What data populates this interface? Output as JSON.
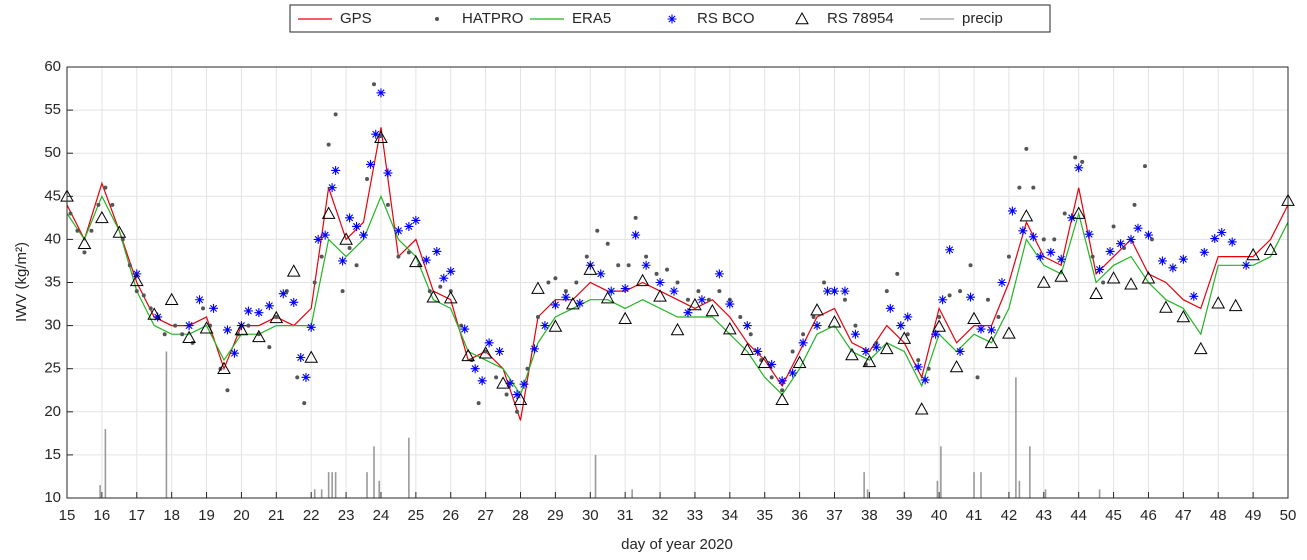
{
  "chart_data": {
    "type": "line",
    "xlabel": "day of year 2020",
    "ylabel": "IWV (kg/m²)",
    "xlim": [
      15,
      50
    ],
    "xticks": [
      15,
      16,
      17,
      18,
      19,
      20,
      21,
      22,
      23,
      24,
      25,
      26,
      27,
      28,
      29,
      30,
      31,
      32,
      33,
      34,
      35,
      36,
      37,
      38,
      39,
      40,
      41,
      42,
      43,
      44,
      45,
      46,
      47,
      48,
      49,
      50
    ],
    "ylim": [
      10,
      60
    ],
    "yticks": [
      10,
      15,
      20,
      25,
      30,
      35,
      40,
      45,
      50,
      55,
      60
    ],
    "grid": true,
    "legend": "top",
    "series": [
      {
        "name": "GPS",
        "style": "line",
        "color": "#e8000b",
        "x": [
          15,
          15.5,
          16,
          16.5,
          17,
          17.5,
          18,
          18.5,
          19,
          19.5,
          20,
          20.5,
          21,
          21.5,
          22,
          22.5,
          23,
          23.5,
          24,
          24.5,
          25,
          25.5,
          26,
          26.5,
          27,
          27.5,
          28,
          28.5,
          29,
          29.5,
          30,
          30.5,
          31,
          31.5,
          32,
          32.5,
          33,
          33.5,
          34,
          34.5,
          35,
          35.5,
          36,
          36.5,
          37,
          37.5,
          38,
          38.5,
          39,
          39.5,
          40,
          40.5,
          41,
          41.5,
          42,
          42.5,
          43,
          43.5,
          44,
          44.5,
          45,
          45.5,
          46,
          46.5,
          47,
          47.5,
          48,
          48.5,
          49,
          49.5,
          50
        ],
        "values": [
          44,
          40,
          46.5,
          41,
          35,
          31,
          30,
          30,
          31,
          25,
          30,
          30,
          31,
          30,
          32,
          46,
          40,
          42,
          53,
          38,
          40,
          34,
          33,
          26,
          27,
          25,
          19,
          31,
          33,
          33,
          35,
          34,
          34,
          35,
          34,
          33,
          32,
          33,
          31,
          28,
          26,
          23,
          27,
          31,
          32,
          28,
          27,
          30,
          28,
          24,
          32,
          28,
          30,
          30,
          35,
          42,
          38,
          37,
          46,
          36,
          38,
          40,
          36,
          35,
          33,
          32,
          38,
          38,
          38,
          40,
          44
        ]
      },
      {
        "name": "HATPRO",
        "style": "dot",
        "color": "#555555",
        "x": [
          15.1,
          15.3,
          15.5,
          15.7,
          15.9,
          16.1,
          16.3,
          16.6,
          16.8,
          17,
          17.2,
          17.4,
          17.6,
          17.8,
          18.1,
          18.3,
          18.6,
          18.9,
          19.1,
          19.4,
          19.6,
          19.9,
          20.2,
          20.5,
          20.8,
          21,
          21.3,
          21.6,
          21.8,
          22.1,
          22.3,
          22.5,
          22.7,
          22.9,
          23.1,
          23.3,
          23.6,
          23.8,
          24,
          24.2,
          24.5,
          24.8,
          25.1,
          25.4,
          25.7,
          26,
          26.3,
          26.6,
          26.8,
          27,
          27.3,
          27.6,
          27.9,
          28.2,
          28.5,
          28.8,
          29,
          29.3,
          29.6,
          29.9,
          30.2,
          30.5,
          30.8,
          31.1,
          31.3,
          31.6,
          31.9,
          32.2,
          32.5,
          32.8,
          33.1,
          33.4,
          33.7,
          34,
          34.3,
          34.6,
          34.9,
          35.2,
          35.5,
          35.8,
          36.1,
          36.4,
          36.7,
          37,
          37.3,
          37.6,
          37.9,
          38.2,
          38.5,
          38.8,
          39.1,
          39.4,
          39.7,
          40,
          40.3,
          40.6,
          40.9,
          41.1,
          41.4,
          41.7,
          42,
          42.3,
          42.5,
          42.7,
          43,
          43.3,
          43.6,
          43.9,
          44.1,
          44.4,
          44.7,
          45,
          45.3,
          45.6,
          45.9,
          46.1
        ],
        "values": [
          43,
          41,
          38.5,
          41,
          44,
          46,
          44,
          40,
          37,
          34,
          33.5,
          32,
          31,
          29,
          30,
          29,
          28,
          32,
          30,
          25,
          22.5,
          29,
          30,
          29,
          27.5,
          31,
          34,
          24,
          21,
          35,
          38,
          51,
          54.5,
          34,
          39,
          37,
          47,
          58,
          52,
          44,
          38,
          38.5,
          37,
          34,
          34.5,
          34,
          30,
          26,
          21,
          27,
          24,
          22,
          20,
          25,
          31,
          35,
          35.5,
          34,
          35,
          38,
          41,
          39.5,
          37,
          37,
          42.5,
          38,
          36,
          36.5,
          35,
          33,
          34,
          33,
          34,
          33,
          31,
          29,
          26,
          24,
          22.5,
          27,
          29,
          31,
          35,
          34,
          33,
          30,
          25.5,
          28,
          34,
          36,
          29,
          26,
          25,
          31,
          33.5,
          34,
          37,
          24,
          33,
          31,
          38,
          46,
          50.5,
          46,
          40,
          40,
          43,
          49.5,
          49,
          38,
          35,
          41.5,
          39,
          44,
          48.5,
          40
        ]
      },
      {
        "name": "ERA5",
        "style": "line",
        "color": "#22b522",
        "x": [
          15,
          15.5,
          16,
          16.5,
          17,
          17.5,
          18,
          18.5,
          19,
          19.5,
          20,
          20.5,
          21,
          21.5,
          22,
          22.5,
          23,
          23.5,
          24,
          24.5,
          25,
          25.5,
          26,
          26.5,
          27,
          27.5,
          28,
          28.5,
          29,
          29.5,
          30,
          30.5,
          31,
          31.5,
          32,
          32.5,
          33,
          33.5,
          34,
          34.5,
          35,
          35.5,
          36,
          36.5,
          37,
          37.5,
          38,
          38.5,
          39,
          39.5,
          40,
          40.5,
          41,
          41.5,
          42,
          42.5,
          43,
          43.5,
          44,
          44.5,
          45,
          45.5,
          46,
          46.5,
          47,
          47.5,
          48,
          48.5,
          49,
          49.5,
          50
        ],
        "values": [
          43,
          40,
          45,
          41,
          34,
          30,
          29,
          29,
          30,
          26,
          29,
          29,
          30,
          30,
          30,
          40,
          38,
          40,
          45,
          40,
          38,
          33,
          32,
          27,
          26,
          25,
          22,
          28,
          31,
          32,
          33,
          33,
          32,
          33,
          32,
          31,
          31,
          31,
          29,
          27,
          24,
          22,
          25,
          29,
          30,
          27,
          26,
          28,
          27,
          23,
          29,
          27,
          29,
          28,
          32,
          40,
          37,
          36,
          43,
          35,
          37,
          38,
          35,
          33,
          32,
          29,
          37,
          37,
          37,
          38,
          42
        ]
      },
      {
        "name": "RS BCO",
        "style": "asterisk",
        "color": "#0000ff",
        "x": [
          17,
          17.6,
          18.5,
          18.8,
          19.2,
          19.6,
          19.8,
          20,
          20.2,
          20.5,
          20.8,
          21.2,
          21.5,
          21.7,
          21.85,
          22,
          22.2,
          22.4,
          22.6,
          22.7,
          22.9,
          23.1,
          23.3,
          23.5,
          23.7,
          23.85,
          24,
          24.2,
          24.5,
          24.8,
          25,
          25.3,
          25.6,
          25.8,
          26,
          26.4,
          26.7,
          26.9,
          27.1,
          27.4,
          27.7,
          27.9,
          28.1,
          28.4,
          28.7,
          29,
          29.3,
          29.7,
          30,
          30.3,
          30.6,
          31,
          31.3,
          31.6,
          32,
          32.4,
          32.8,
          33.2,
          33.7,
          34,
          34.5,
          34.8,
          35.2,
          35.5,
          35.8,
          36.1,
          36.5,
          36.8,
          37,
          37.3,
          37.6,
          37.9,
          38.2,
          38.6,
          38.9,
          39.1,
          39.4,
          39.6,
          39.9,
          40.1,
          40.3,
          40.6,
          40.9,
          41.2,
          41.5,
          41.8,
          42.1,
          42.4,
          42.7,
          42.9,
          43.2,
          43.5,
          43.8,
          44,
          44.3,
          44.6,
          44.9,
          45.2,
          45.5,
          45.7,
          46,
          46.4,
          46.7,
          47,
          47.3,
          47.6,
          47.9,
          48.1,
          48.4,
          48.8
        ],
        "values": [
          36,
          31,
          30,
          33,
          32,
          29.5,
          26.8,
          30,
          31.7,
          31.5,
          32.3,
          33.7,
          32.7,
          26.3,
          24,
          29.8,
          40,
          40.5,
          46,
          48,
          37.5,
          42.5,
          41.5,
          40.5,
          48.7,
          52.2,
          57,
          47.7,
          41,
          41.5,
          42.2,
          37.6,
          38.6,
          35.5,
          36.3,
          29.6,
          25,
          23.6,
          28,
          27,
          23.3,
          22,
          23.2,
          27.3,
          30,
          32.4,
          33.3,
          32.6,
          37,
          36,
          34,
          34.3,
          40.5,
          37,
          35,
          34,
          31.5,
          33,
          36,
          32.5,
          30,
          27,
          25.5,
          23.6,
          24.5,
          28,
          30,
          34,
          34,
          34,
          29,
          27,
          27.5,
          32,
          30,
          31,
          25.2,
          23.7,
          29,
          33,
          38.8,
          27,
          33.3,
          29.6,
          29.5,
          35,
          43.3,
          41,
          40.3,
          38,
          38.5,
          37.7,
          42.5,
          48.3,
          40.6,
          36.5,
          38.6,
          39.5,
          40,
          41.3,
          40.5,
          37.5,
          36.7,
          37.7,
          33.4,
          38.5,
          40.1,
          40.8,
          39.7,
          37
        ]
      },
      {
        "name": "RS 78954",
        "style": "triangle",
        "color": "#000000",
        "x": [
          15,
          15.5,
          16,
          16.5,
          17,
          17.5,
          18,
          18.5,
          19,
          19.5,
          20,
          20.5,
          21,
          21.5,
          22,
          22.5,
          23,
          24,
          25,
          25.5,
          26,
          26.5,
          27,
          27.5,
          28,
          28.5,
          29,
          29.5,
          30,
          30.5,
          31,
          31.5,
          32,
          32.5,
          33,
          33.5,
          34,
          34.5,
          35,
          35.5,
          36,
          36.5,
          37,
          37.5,
          38,
          38.5,
          39,
          39.5,
          40,
          40.5,
          41,
          41.5,
          42,
          42.5,
          43,
          43.5,
          44,
          44.5,
          45,
          45.5,
          46,
          46.5,
          47,
          47.5,
          48,
          48.5,
          49,
          49.5,
          50
        ],
        "values": [
          45,
          39.5,
          42.5,
          40.8,
          35.2,
          31.3,
          33,
          28.6,
          29.7,
          25,
          29.5,
          28.7,
          30.9,
          36.3,
          26.3,
          43,
          40,
          51.8,
          37.4,
          33.3,
          33.2,
          26.5,
          26.8,
          23.3,
          21.4,
          34.3,
          29.9,
          32.5,
          36.5,
          33.2,
          30.8,
          35.2,
          33.4,
          29.5,
          32.4,
          31.7,
          29.6,
          27.2,
          25.7,
          21.4,
          25.7,
          31.8,
          30.4,
          26.6,
          25.8,
          27.3,
          28.5,
          20.3,
          29.9,
          25.2,
          30.8,
          28,
          29.1,
          42.7,
          35,
          35.7,
          43,
          33.7,
          35.5,
          34.8,
          35.5,
          32.1,
          31,
          27.3,
          32.6,
          32.3,
          38.2,
          38.8,
          44.5
        ]
      },
      {
        "name": "precip",
        "style": "bar",
        "color": "#9a9a9a",
        "x": [
          15.95,
          16.1,
          17.85,
          22.1,
          22.3,
          22.5,
          22.6,
          22.7,
          23.6,
          23.8,
          23.95,
          24.8,
          30.15,
          31.2,
          37.85,
          37.95,
          39.95,
          40.05,
          41,
          41.2,
          42.2,
          42.3,
          42.6,
          43.05,
          44.6
        ],
        "values": [
          11.5,
          18,
          27,
          11,
          11,
          13,
          13,
          13,
          13,
          16,
          12,
          17,
          15,
          11,
          13,
          11,
          12,
          16,
          13,
          13,
          24,
          12,
          16,
          11,
          11
        ]
      }
    ]
  }
}
